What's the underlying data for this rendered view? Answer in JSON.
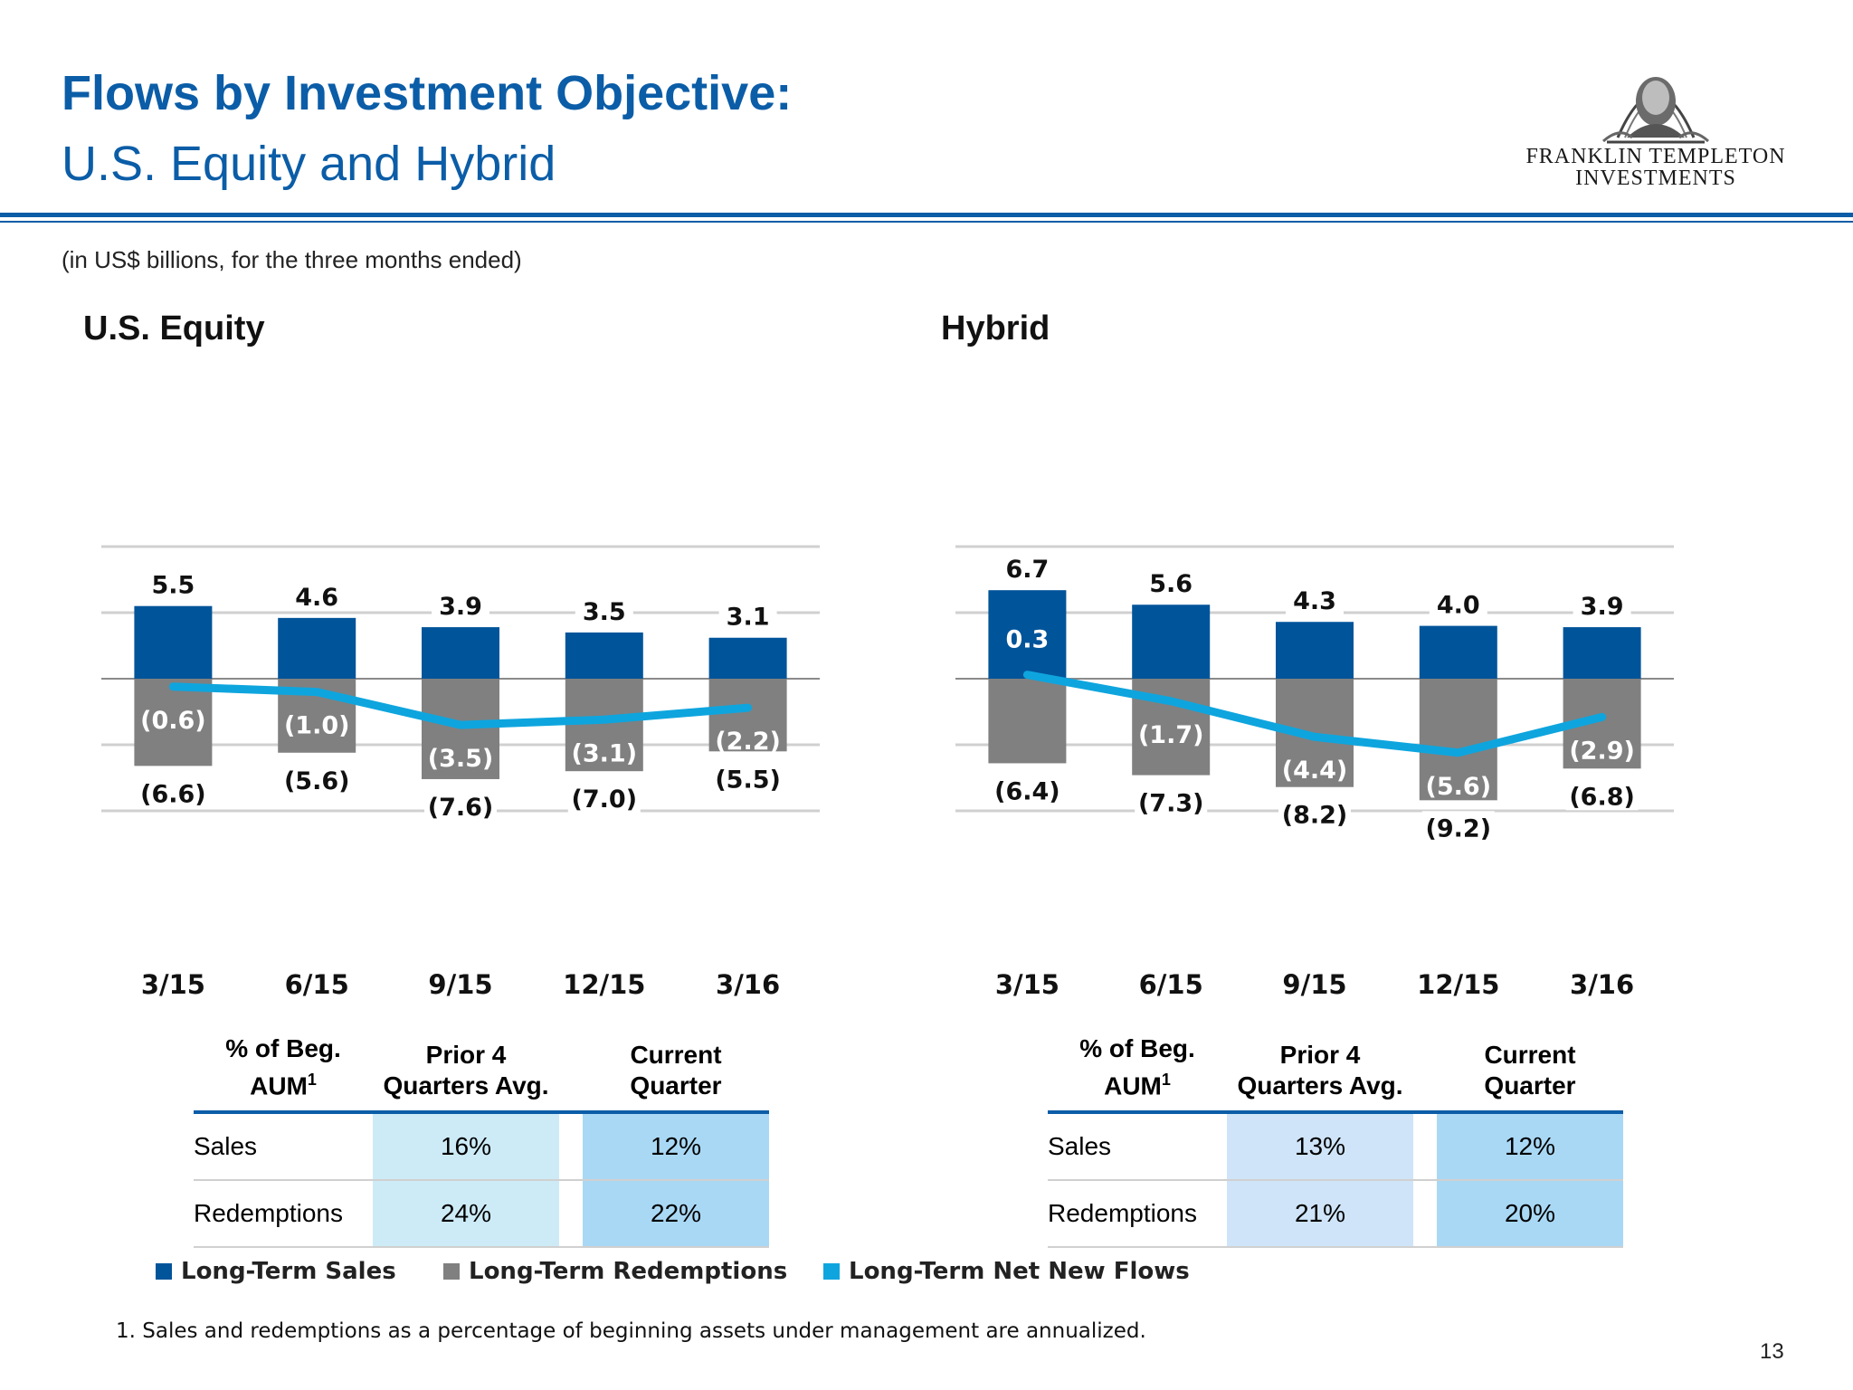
{
  "header": {
    "title": "Flows by Investment Objective:",
    "subtitle": "U.S. Equity and Hybrid",
    "units_note": "(in US$ billions, for the three months ended)",
    "logo_line1": "FRANKLIN TEMPLETON",
    "logo_line2": "INVESTMENTS"
  },
  "colors": {
    "brand": "#0b5da7",
    "sales": "#00549a",
    "redemptions": "#808080",
    "net_flows": "#0ea5de"
  },
  "chart_data": [
    {
      "type": "bar",
      "title": "U.S. Equity",
      "categories": [
        "3/15",
        "6/15",
        "9/15",
        "12/15",
        "3/16"
      ],
      "series": [
        {
          "name": "Long-Term Sales",
          "values": [
            5.5,
            4.6,
            3.9,
            3.5,
            3.1
          ],
          "labels": [
            "5.5",
            "4.6",
            "3.9",
            "3.5",
            "3.1"
          ]
        },
        {
          "name": "Long-Term Redemptions",
          "values": [
            -6.6,
            -5.6,
            -7.6,
            -7.0,
            -5.5
          ],
          "labels": [
            "(6.6)",
            "(5.6)",
            "(7.6)",
            "(7.0)",
            "(5.5)"
          ]
        },
        {
          "name": "Long-Term Net New Flows",
          "type": "line",
          "values": [
            -0.6,
            -1.0,
            -3.5,
            -3.1,
            -2.2
          ],
          "labels": [
            "(0.6)",
            "(1.0)",
            "(3.5)",
            "(3.1)",
            "(2.2)"
          ]
        }
      ],
      "ylim": [
        -10,
        10
      ],
      "grid": true
    },
    {
      "type": "bar",
      "title": "Hybrid",
      "categories": [
        "3/15",
        "6/15",
        "9/15",
        "12/15",
        "3/16"
      ],
      "series": [
        {
          "name": "Long-Term Sales",
          "values": [
            6.7,
            5.6,
            4.3,
            4.0,
            3.9
          ],
          "labels": [
            "6.7",
            "5.6",
            "4.3",
            "4.0",
            "3.9"
          ]
        },
        {
          "name": "Long-Term Redemptions",
          "values": [
            -6.4,
            -7.3,
            -8.2,
            -9.2,
            -6.8
          ],
          "labels": [
            "(6.4)",
            "(7.3)",
            "(8.2)",
            "(9.2)",
            "(6.8)"
          ]
        },
        {
          "name": "Long-Term Net New Flows",
          "type": "line",
          "values": [
            0.3,
            -1.7,
            -4.4,
            -5.6,
            -2.9
          ],
          "labels": [
            "0.3",
            "(1.7)",
            "(4.4)",
            "(5.6)",
            "(2.9)"
          ]
        }
      ],
      "ylim": [
        -10,
        10
      ],
      "grid": true
    }
  ],
  "tables": [
    {
      "headers": [
        "% of Beg.",
        "AUM",
        "1",
        "Prior 4",
        "Quarters Avg.",
        "Current",
        "Quarter"
      ],
      "rows": [
        {
          "label": "Sales",
          "prior": "16%",
          "current": "12%"
        },
        {
          "label": "Redemptions",
          "prior": "24%",
          "current": "22%"
        }
      ],
      "prior_color": "#cdebf7",
      "current_color": "#a9d8f5"
    },
    {
      "headers": [
        "% of Beg.",
        "AUM",
        "1",
        "Prior 4",
        "Quarters Avg.",
        "Current",
        "Quarter"
      ],
      "rows": [
        {
          "label": "Sales",
          "prior": "13%",
          "current": "12%"
        },
        {
          "label": "Redemptions",
          "prior": "21%",
          "current": "20%"
        }
      ],
      "prior_color": "#cfe4f8",
      "current_color": "#a9d8f5"
    }
  ],
  "legend": {
    "sales": "Long-Term Sales",
    "redemptions": "Long-Term Redemptions",
    "net_flows": "Long-Term Net New Flows"
  },
  "footnote": "1.  Sales and redemptions as a percentage of beginning assets under management are annualized.",
  "page_number": "13"
}
